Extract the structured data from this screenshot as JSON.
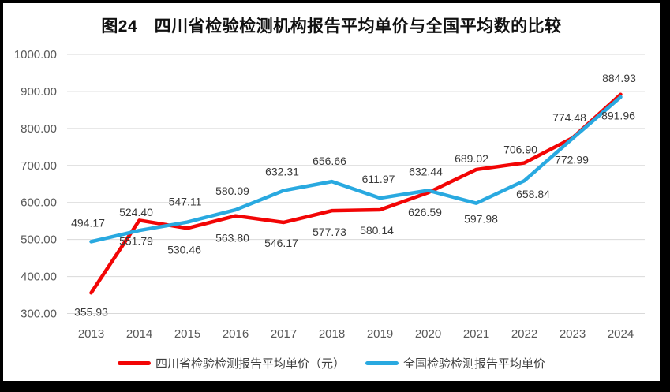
{
  "chart_data": {
    "type": "line",
    "title": "图24　四川省检验检测机构报告平均单价与全国平均数的比较",
    "categories": [
      "2013",
      "2014",
      "2015",
      "2016",
      "2017",
      "2018",
      "2019",
      "2020",
      "2021",
      "2022",
      "2023",
      "2024"
    ],
    "series": [
      {
        "name": "四川省检验检测报告平均单价（元）",
        "color": "#F20505",
        "values": [
          355.93,
          551.79,
          530.46,
          563.8,
          546.17,
          577.73,
          580.14,
          626.59,
          689.02,
          706.9,
          774.48,
          891.96
        ],
        "label_offsets": [
          [
            0,
            24
          ],
          [
            -4,
            26
          ],
          [
            -4,
            27
          ],
          [
            -4,
            28
          ],
          [
            -3,
            26
          ],
          [
            -3,
            27
          ],
          [
            -4,
            26
          ],
          [
            -4,
            25
          ],
          [
            -6,
            -14
          ],
          [
            -5,
            -17
          ],
          [
            -4,
            -26
          ],
          [
            -3,
            27
          ]
        ]
      },
      {
        "name": "全国检验检测报告平均单价",
        "color": "#29A9E0",
        "values": [
          494.17,
          524.4,
          547.11,
          580.09,
          632.31,
          656.66,
          611.97,
          632.44,
          597.98,
          658.84,
          772.99,
          884.93
        ],
        "label_offsets": [
          [
            -4,
            -24
          ],
          [
            -4,
            -23
          ],
          [
            -3,
            -26
          ],
          [
            -4,
            -24
          ],
          [
            -2,
            -24
          ],
          [
            -3,
            -26
          ],
          [
            -2,
            -24
          ],
          [
            -3,
            -24
          ],
          [
            6,
            20
          ],
          [
            11,
            17
          ],
          [
            -1,
            27
          ],
          [
            -2,
            -24
          ]
        ]
      }
    ],
    "ylim": [
      300,
      1000
    ],
    "ytick_step": 100,
    "ytick_labels": [
      "1000.00",
      "900.00",
      "800.00",
      "700.00",
      "600.00",
      "500.00",
      "400.00",
      "300.00"
    ],
    "value_decimals": 2,
    "grid": true,
    "legend_position": "bottom",
    "colors": {
      "gridline": "#D9D9D9",
      "tick_text": "#595959",
      "data_label_text": "#3a3a3a",
      "background": "#FFFFFF",
      "frame": "#000000"
    }
  }
}
